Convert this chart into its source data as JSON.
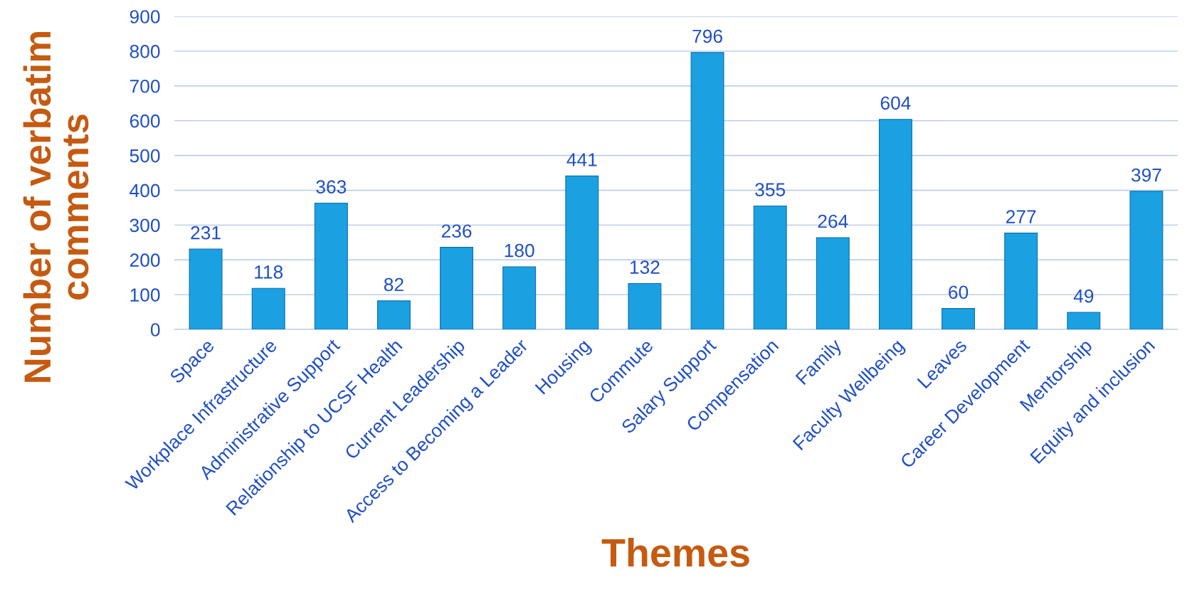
{
  "chart_data": {
    "type": "bar",
    "xlabel": "Themes",
    "ylabel": "Number of verbatim comments",
    "categories": [
      "Space",
      "Workplace Infrastructure",
      "Administrative Support",
      "Relationship to UCSF Health",
      "Current Leadership",
      "Access to Becoming a Leader",
      "Housing",
      "Commute",
      "Salary Support",
      "Compensation",
      "Family",
      "Faculty Wellbeing",
      "Leaves",
      "Career Development",
      "Mentorship",
      "Equity and inclusion"
    ],
    "values": [
      231,
      118,
      363,
      82,
      236,
      180,
      441,
      132,
      796,
      355,
      264,
      604,
      60,
      277,
      49,
      397
    ],
    "color": "#1ba1e2",
    "ylim": [
      0,
      900
    ],
    "yticks": [
      0,
      100,
      200,
      300,
      400,
      500,
      600,
      700,
      800,
      900
    ],
    "grid": "y",
    "data_labels": true
  }
}
